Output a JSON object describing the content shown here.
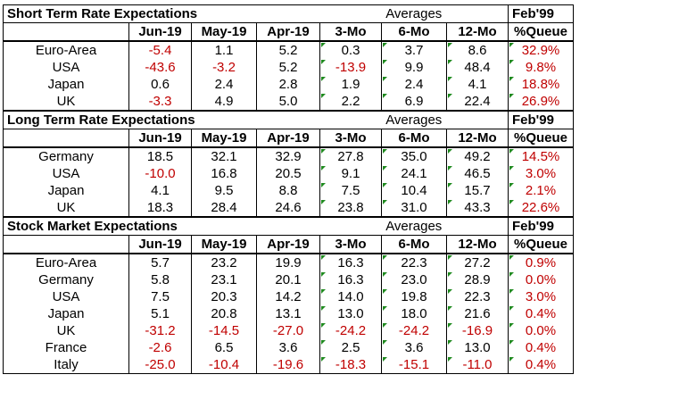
{
  "headers": {
    "averages": "Averages",
    "feb99": "Feb'99",
    "cols": [
      "Jun-19",
      "May-19",
      "Apr-19",
      "3-Mo",
      "6-Mo",
      "12-Mo",
      "%Queue"
    ]
  },
  "colors": {
    "negative": "#c00000",
    "marker": "#1f8a1f"
  },
  "sections": [
    {
      "title": "Short Term Rate Expectations",
      "rows": [
        {
          "label": "Euro-Area",
          "vals": [
            "-5.4",
            "1.1",
            "5.2",
            "0.3",
            "3.7",
            "8.6",
            "32.9%"
          ]
        },
        {
          "label": "USA",
          "vals": [
            "-43.6",
            "-3.2",
            "5.2",
            "-13.9",
            "9.9",
            "48.4",
            "9.8%"
          ]
        },
        {
          "label": "Japan",
          "vals": [
            "0.6",
            "2.4",
            "2.8",
            "1.9",
            "2.4",
            "4.1",
            "18.8%"
          ]
        },
        {
          "label": "UK",
          "vals": [
            "-3.3",
            "4.9",
            "5.0",
            "2.2",
            "6.9",
            "22.4",
            "26.9%"
          ]
        }
      ]
    },
    {
      "title": "Long Term Rate Expectations",
      "rows": [
        {
          "label": "Germany",
          "vals": [
            "18.5",
            "32.1",
            "32.9",
            "27.8",
            "35.0",
            "49.2",
            "14.5%"
          ]
        },
        {
          "label": "USA",
          "vals": [
            "-10.0",
            "16.8",
            "20.5",
            "9.1",
            "24.1",
            "46.5",
            "3.0%"
          ]
        },
        {
          "label": "Japan",
          "vals": [
            "4.1",
            "9.5",
            "8.8",
            "7.5",
            "10.4",
            "15.7",
            "2.1%"
          ]
        },
        {
          "label": "UK",
          "vals": [
            "18.3",
            "28.4",
            "24.6",
            "23.8",
            "31.0",
            "43.3",
            "22.6%"
          ]
        }
      ]
    },
    {
      "title": "Stock Market Expectations",
      "rows": [
        {
          "label": "Euro-Area",
          "vals": [
            "5.7",
            "23.2",
            "19.9",
            "16.3",
            "22.3",
            "27.2",
            "0.9%"
          ]
        },
        {
          "label": "Germany",
          "vals": [
            "5.8",
            "23.1",
            "20.1",
            "16.3",
            "23.0",
            "28.9",
            "0.0%"
          ]
        },
        {
          "label": "USA",
          "vals": [
            "7.5",
            "20.3",
            "14.2",
            "14.0",
            "19.8",
            "22.3",
            "3.0%"
          ]
        },
        {
          "label": "Japan",
          "vals": [
            "5.1",
            "20.8",
            "13.1",
            "13.0",
            "18.0",
            "21.6",
            "0.4%"
          ]
        },
        {
          "label": "UK",
          "vals": [
            "-31.2",
            "-14.5",
            "-27.0",
            "-24.2",
            "-24.2",
            "-16.9",
            "0.0%"
          ]
        },
        {
          "label": "France",
          "vals": [
            "-2.6",
            "6.5",
            "3.6",
            "2.5",
            "3.6",
            "13.0",
            "0.4%"
          ]
        },
        {
          "label": "Italy",
          "vals": [
            "-25.0",
            "-10.4",
            "-19.6",
            "-18.3",
            "-15.1",
            "-11.0",
            "0.4%"
          ]
        }
      ]
    }
  ]
}
